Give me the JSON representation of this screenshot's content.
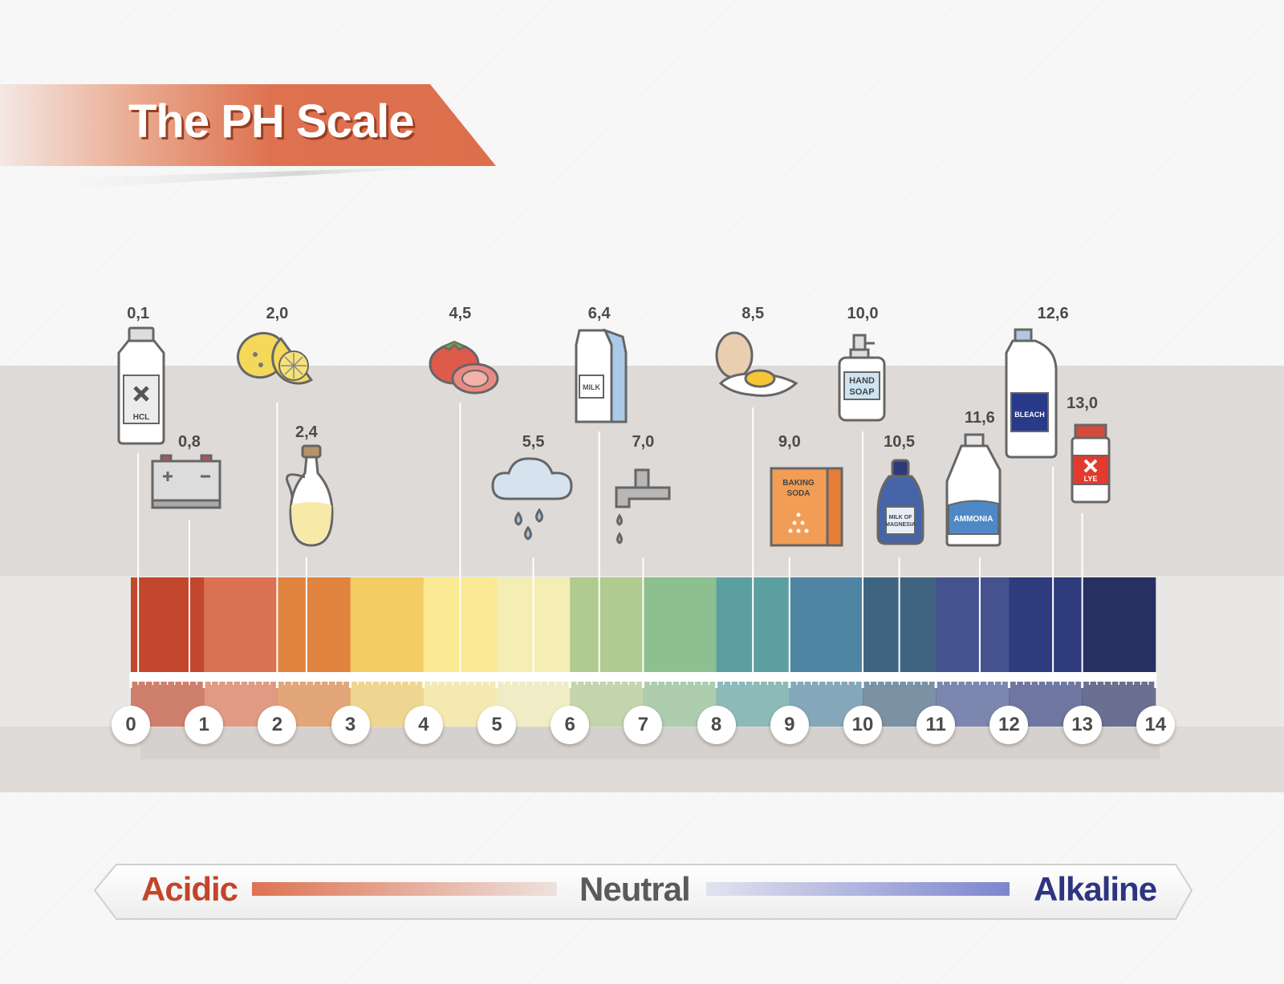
{
  "title": "The PH Scale",
  "scale": {
    "ticks": [
      "0",
      "1",
      "2",
      "3",
      "4",
      "5",
      "6",
      "7",
      "8",
      "9",
      "10",
      "11",
      "12",
      "13",
      "14"
    ],
    "band_colors": [
      "#c2472c",
      "#da7150",
      "#e0833e",
      "#f3cc63",
      "#fbe993",
      "#f4eeb4",
      "#b0ca8f",
      "#8dbf90",
      "#5c9fa1",
      "#4f85a3",
      "#3f6481",
      "#445290",
      "#2e3b7c",
      "#282f63"
    ]
  },
  "substances": [
    {
      "value": 0.1,
      "label": "0,1",
      "icon": "hcl-bottle-icon",
      "icon_text": "HCL"
    },
    {
      "value": 0.8,
      "label": "0,8",
      "icon": "car-battery-icon"
    },
    {
      "value": 2.0,
      "label": "2,0",
      "icon": "lemon-icon"
    },
    {
      "value": 2.4,
      "label": "2,4",
      "icon": "vinegar-bottle-icon"
    },
    {
      "value": 4.5,
      "label": "4,5",
      "icon": "tomato-icon"
    },
    {
      "value": 5.5,
      "label": "5,5",
      "icon": "rain-cloud-icon"
    },
    {
      "value": 6.4,
      "label": "6,4",
      "icon": "milk-carton-icon",
      "icon_text": "MILK"
    },
    {
      "value": 7.0,
      "label": "7,0",
      "icon": "water-tap-icon"
    },
    {
      "value": 8.5,
      "label": "8,5",
      "icon": "egg-icon"
    },
    {
      "value": 9.0,
      "label": "9,0",
      "icon": "baking-soda-box-icon",
      "icon_text": "BAKING SODA"
    },
    {
      "value": 10.0,
      "label": "10,0",
      "icon": "hand-soap-icon",
      "icon_text": "HAND SOAP"
    },
    {
      "value": 10.5,
      "label": "10,5",
      "icon": "milk-of-magnesia-bottle-icon",
      "icon_text": "MILK OF MAGNESIA"
    },
    {
      "value": 11.6,
      "label": "11,6",
      "icon": "ammonia-jug-icon",
      "icon_text": "AMMONIA"
    },
    {
      "value": 12.6,
      "label": "12,6",
      "icon": "bleach-bottle-icon",
      "icon_text": "BLEACH"
    },
    {
      "value": 13.0,
      "label": "13,0",
      "icon": "lye-jar-icon",
      "icon_text": "LYE"
    }
  ],
  "legend": {
    "acidic": "Acidic",
    "neutral": "Neutral",
    "alkaline": "Alkaline"
  }
}
